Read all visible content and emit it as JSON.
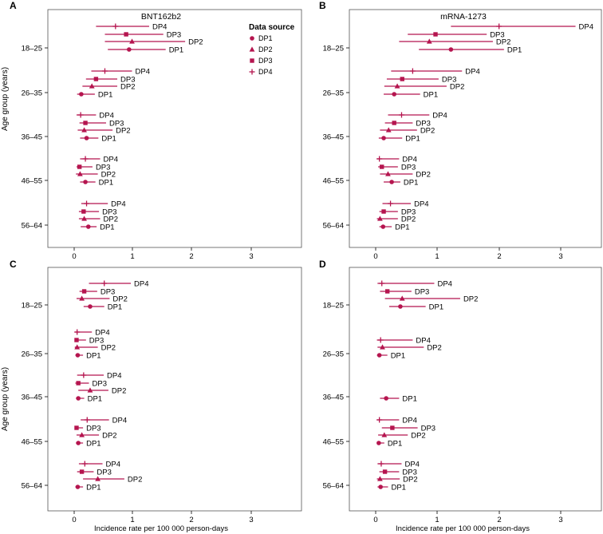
{
  "colors": {
    "mark": "#b5154f",
    "axis": "#000000",
    "frame": "#555555"
  },
  "y_axis_label": "Age group (years)",
  "x_axis_label": "Incidence rate per 100 000 person-days",
  "x_ticks": [
    "0",
    "1",
    "2",
    "3"
  ],
  "legend": {
    "title": "Data source",
    "entries": [
      {
        "label": "DP1",
        "marker": "circle"
      },
      {
        "label": "DP2",
        "marker": "triangle"
      },
      {
        "label": "DP3",
        "marker": "square"
      },
      {
        "label": "DP4",
        "marker": "plus"
      }
    ]
  },
  "chart_data": [
    {
      "panel": "A",
      "title": "BNT162b2",
      "type": "forest",
      "categories": [
        "18–25",
        "26–35",
        "36–45",
        "46–55",
        "56–64"
      ],
      "xlim": [
        -0.45,
        3.8
      ],
      "groups": [
        {
          "age": "18–25",
          "rows": [
            {
              "label": "DP4",
              "marker": "plus",
              "est": 0.7,
              "lo": 0.37,
              "hi": 1.27
            },
            {
              "label": "DP3",
              "marker": "square",
              "est": 0.88,
              "lo": 0.52,
              "hi": 1.51
            },
            {
              "label": "DP2",
              "marker": "triangle",
              "est": 0.98,
              "lo": 0.52,
              "hi": 1.88
            },
            {
              "label": "DP1",
              "marker": "circle",
              "est": 0.93,
              "lo": 0.57,
              "hi": 1.55
            }
          ]
        },
        {
          "age": "26–35",
          "rows": [
            {
              "label": "DP4",
              "marker": "plus",
              "est": 0.52,
              "lo": 0.29,
              "hi": 0.98
            },
            {
              "label": "DP3",
              "marker": "square",
              "est": 0.37,
              "lo": 0.2,
              "hi": 0.73
            },
            {
              "label": "DP2",
              "marker": "triangle",
              "est": 0.3,
              "lo": 0.14,
              "hi": 0.73
            },
            {
              "label": "DP1",
              "marker": "circle",
              "est": 0.12,
              "lo": 0.05,
              "hi": 0.35
            }
          ]
        },
        {
          "age": "36–45",
          "rows": [
            {
              "label": "DP4",
              "marker": "plus",
              "est": 0.11,
              "lo": 0.04,
              "hi": 0.37
            },
            {
              "label": "DP3",
              "marker": "square",
              "est": 0.19,
              "lo": 0.09,
              "hi": 0.54
            },
            {
              "label": "DP2",
              "marker": "triangle",
              "est": 0.17,
              "lo": 0.06,
              "hi": 0.65
            },
            {
              "label": "DP1",
              "marker": "circle",
              "est": 0.21,
              "lo": 0.1,
              "hi": 0.41
            }
          ]
        },
        {
          "age": "46–55",
          "rows": [
            {
              "label": "DP4",
              "marker": "plus",
              "est": 0.19,
              "lo": 0.1,
              "hi": 0.44
            },
            {
              "label": "DP3",
              "marker": "square",
              "est": 0.09,
              "lo": 0.04,
              "hi": 0.31
            },
            {
              "label": "DP2",
              "marker": "triangle",
              "est": 0.1,
              "lo": 0.03,
              "hi": 0.4
            },
            {
              "label": "DP1",
              "marker": "circle",
              "est": 0.19,
              "lo": 0.1,
              "hi": 0.36
            }
          ]
        },
        {
          "age": "56–64",
          "rows": [
            {
              "label": "DP4",
              "marker": "plus",
              "est": 0.21,
              "lo": 0.12,
              "hi": 0.57
            },
            {
              "label": "DP3",
              "marker": "square",
              "est": 0.16,
              "lo": 0.08,
              "hi": 0.42
            },
            {
              "label": "DP2",
              "marker": "triangle",
              "est": 0.17,
              "lo": 0.08,
              "hi": 0.44
            },
            {
              "label": "DP1",
              "marker": "circle",
              "est": 0.24,
              "lo": 0.11,
              "hi": 0.38
            }
          ]
        }
      ]
    },
    {
      "panel": "B",
      "title": "mRNA-1273",
      "type": "forest",
      "categories": [
        "18–25",
        "26–35",
        "36–45",
        "46–55",
        "56–64"
      ],
      "xlim": [
        -0.45,
        3.8
      ],
      "groups": [
        {
          "age": "18–25",
          "rows": [
            {
              "label": "DP4",
              "marker": "plus",
              "est": 2.0,
              "lo": 1.22,
              "hi": 3.24
            },
            {
              "label": "DP3",
              "marker": "square",
              "est": 0.97,
              "lo": 0.52,
              "hi": 1.8
            },
            {
              "label": "DP2",
              "marker": "triangle",
              "est": 0.87,
              "lo": 0.38,
              "hi": 1.9
            },
            {
              "label": "DP1",
              "marker": "circle",
              "est": 1.22,
              "lo": 0.7,
              "hi": 2.08
            }
          ]
        },
        {
          "age": "26–35",
          "rows": [
            {
              "label": "DP4",
              "marker": "plus",
              "est": 0.6,
              "lo": 0.25,
              "hi": 1.4
            },
            {
              "label": "DP3",
              "marker": "square",
              "est": 0.43,
              "lo": 0.18,
              "hi": 1.02
            },
            {
              "label": "DP2",
              "marker": "triangle",
              "est": 0.35,
              "lo": 0.14,
              "hi": 1.15
            },
            {
              "label": "DP1",
              "marker": "circle",
              "est": 0.3,
              "lo": 0.13,
              "hi": 0.72
            }
          ]
        },
        {
          "age": "36–45",
          "rows": [
            {
              "label": "DP4",
              "marker": "plus",
              "est": 0.42,
              "lo": 0.2,
              "hi": 0.87
            },
            {
              "label": "DP3",
              "marker": "square",
              "est": 0.3,
              "lo": 0.15,
              "hi": 0.6
            },
            {
              "label": "DP2",
              "marker": "triangle",
              "est": 0.21,
              "lo": 0.07,
              "hi": 0.67
            },
            {
              "label": "DP1",
              "marker": "circle",
              "est": 0.13,
              "lo": 0.05,
              "hi": 0.43
            }
          ]
        },
        {
          "age": "46–55",
          "rows": [
            {
              "label": "DP4",
              "marker": "plus",
              "est": 0.06,
              "lo": 0.02,
              "hi": 0.38
            },
            {
              "label": "DP3",
              "marker": "square",
              "est": 0.1,
              "lo": 0.04,
              "hi": 0.36
            },
            {
              "label": "DP2",
              "marker": "triangle",
              "est": 0.2,
              "lo": 0.07,
              "hi": 0.6
            },
            {
              "label": "DP1",
              "marker": "circle",
              "est": 0.26,
              "lo": 0.13,
              "hi": 0.4
            }
          ]
        },
        {
          "age": "56–64",
          "rows": [
            {
              "label": "DP4",
              "marker": "plus",
              "est": 0.24,
              "lo": 0.11,
              "hi": 0.57
            },
            {
              "label": "DP3",
              "marker": "square",
              "est": 0.13,
              "lo": 0.06,
              "hi": 0.36
            },
            {
              "label": "DP2",
              "marker": "triangle",
              "est": 0.07,
              "lo": 0.02,
              "hi": 0.36
            },
            {
              "label": "DP1",
              "marker": "circle",
              "est": 0.12,
              "lo": 0.06,
              "hi": 0.26
            }
          ]
        }
      ]
    },
    {
      "panel": "C",
      "title": "",
      "type": "forest",
      "categories": [
        "18–25",
        "26–35",
        "36–45",
        "46–55",
        "56–64"
      ],
      "xlim": [
        -0.45,
        3.8
      ],
      "groups": [
        {
          "age": "18–25",
          "rows": [
            {
              "label": "DP4",
              "marker": "plus",
              "est": 0.51,
              "lo": 0.25,
              "hi": 0.96
            },
            {
              "label": "DP3",
              "marker": "square",
              "est": 0.17,
              "lo": 0.09,
              "hi": 0.39
            },
            {
              "label": "DP2",
              "marker": "triangle",
              "est": 0.13,
              "lo": 0.04,
              "hi": 0.6
            },
            {
              "label": "DP1",
              "marker": "circle",
              "est": 0.27,
              "lo": 0.16,
              "hi": 0.51
            }
          ]
        },
        {
          "age": "26–35",
          "rows": [
            {
              "label": "DP4",
              "marker": "plus",
              "est": 0.05,
              "lo": 0.01,
              "hi": 0.3
            },
            {
              "label": "DP3",
              "marker": "square",
              "est": 0.04,
              "lo": 0.01,
              "hi": 0.2
            },
            {
              "label": "DP2",
              "marker": "triangle",
              "est": 0.05,
              "lo": 0.01,
              "hi": 0.4
            },
            {
              "label": "DP1",
              "marker": "circle",
              "est": 0.06,
              "lo": 0.02,
              "hi": 0.15
            }
          ]
        },
        {
          "age": "36–45",
          "rows": [
            {
              "label": "DP4",
              "marker": "plus",
              "est": 0.16,
              "lo": 0.05,
              "hi": 0.5
            },
            {
              "label": "DP3",
              "marker": "square",
              "est": 0.07,
              "lo": 0.02,
              "hi": 0.25
            },
            {
              "label": "DP2",
              "marker": "triangle",
              "est": 0.27,
              "lo": 0.07,
              "hi": 0.58
            },
            {
              "label": "DP1",
              "marker": "circle",
              "est": 0.07,
              "lo": 0.03,
              "hi": 0.17
            }
          ]
        },
        {
          "age": "46–55",
          "rows": [
            {
              "label": "DP4",
              "marker": "plus",
              "est": 0.22,
              "lo": 0.11,
              "hi": 0.59
            },
            {
              "label": "DP3",
              "marker": "square",
              "est": 0.04,
              "lo": 0.01,
              "hi": 0.15
            },
            {
              "label": "DP2",
              "marker": "triangle",
              "est": 0.13,
              "lo": 0.04,
              "hi": 0.42
            },
            {
              "label": "DP1",
              "marker": "circle",
              "est": 0.07,
              "lo": 0.03,
              "hi": 0.15
            }
          ]
        },
        {
          "age": "56–64",
          "rows": [
            {
              "label": "DP4",
              "marker": "plus",
              "est": 0.18,
              "lo": 0.08,
              "hi": 0.48
            },
            {
              "label": "DP3",
              "marker": "square",
              "est": 0.13,
              "lo": 0.05,
              "hi": 0.33
            },
            {
              "label": "DP2",
              "marker": "triangle",
              "est": 0.4,
              "lo": 0.15,
              "hi": 0.85
            },
            {
              "label": "DP1",
              "marker": "circle",
              "est": 0.06,
              "lo": 0.02,
              "hi": 0.15
            }
          ]
        }
      ]
    },
    {
      "panel": "D",
      "title": "",
      "type": "forest",
      "categories": [
        "18–25",
        "26–35",
        "36–45",
        "46–55",
        "56–64"
      ],
      "xlim": [
        -0.45,
        3.8
      ],
      "groups": [
        {
          "age": "18–25",
          "rows": [
            {
              "label": "DP4",
              "marker": "plus",
              "est": 0.1,
              "lo": 0.03,
              "hi": 0.95
            },
            {
              "label": "DP3",
              "marker": "square",
              "est": 0.19,
              "lo": 0.07,
              "hi": 0.58
            },
            {
              "label": "DP2",
              "marker": "triangle",
              "est": 0.43,
              "lo": 0.15,
              "hi": 1.37
            },
            {
              "label": "DP1",
              "marker": "circle",
              "est": 0.4,
              "lo": 0.22,
              "hi": 0.81
            }
          ]
        },
        {
          "age": "26–35",
          "rows": [
            {
              "label": "DP4",
              "marker": "plus",
              "est": 0.08,
              "lo": 0.02,
              "hi": 0.6
            },
            {
              "label": "DP2",
              "marker": "triangle",
              "est": 0.11,
              "lo": 0.03,
              "hi": 0.78
            },
            {
              "label": "DP1",
              "marker": "circle",
              "est": 0.06,
              "lo": 0.02,
              "hi": 0.19
            }
          ]
        },
        {
          "age": "36–45",
          "rows": [
            {
              "label": "DP1",
              "marker": "circle",
              "est": 0.17,
              "lo": 0.07,
              "hi": 0.38
            }
          ]
        },
        {
          "age": "46–55",
          "rows": [
            {
              "label": "DP4",
              "marker": "plus",
              "est": 0.06,
              "lo": 0.02,
              "hi": 0.38
            },
            {
              "label": "DP3",
              "marker": "square",
              "est": 0.27,
              "lo": 0.1,
              "hi": 0.68
            },
            {
              "label": "DP2",
              "marker": "triangle",
              "est": 0.14,
              "lo": 0.04,
              "hi": 0.52
            },
            {
              "label": "DP1",
              "marker": "circle",
              "est": 0.05,
              "lo": 0.02,
              "hi": 0.14
            }
          ]
        },
        {
          "age": "56–64",
          "rows": [
            {
              "label": "DP4",
              "marker": "plus",
              "est": 0.09,
              "lo": 0.03,
              "hi": 0.42
            },
            {
              "label": "DP3",
              "marker": "square",
              "est": 0.15,
              "lo": 0.06,
              "hi": 0.38
            },
            {
              "label": "DP2",
              "marker": "triangle",
              "est": 0.07,
              "lo": 0.02,
              "hi": 0.39
            },
            {
              "label": "DP1",
              "marker": "circle",
              "est": 0.08,
              "lo": 0.03,
              "hi": 0.2
            }
          ]
        }
      ]
    }
  ]
}
